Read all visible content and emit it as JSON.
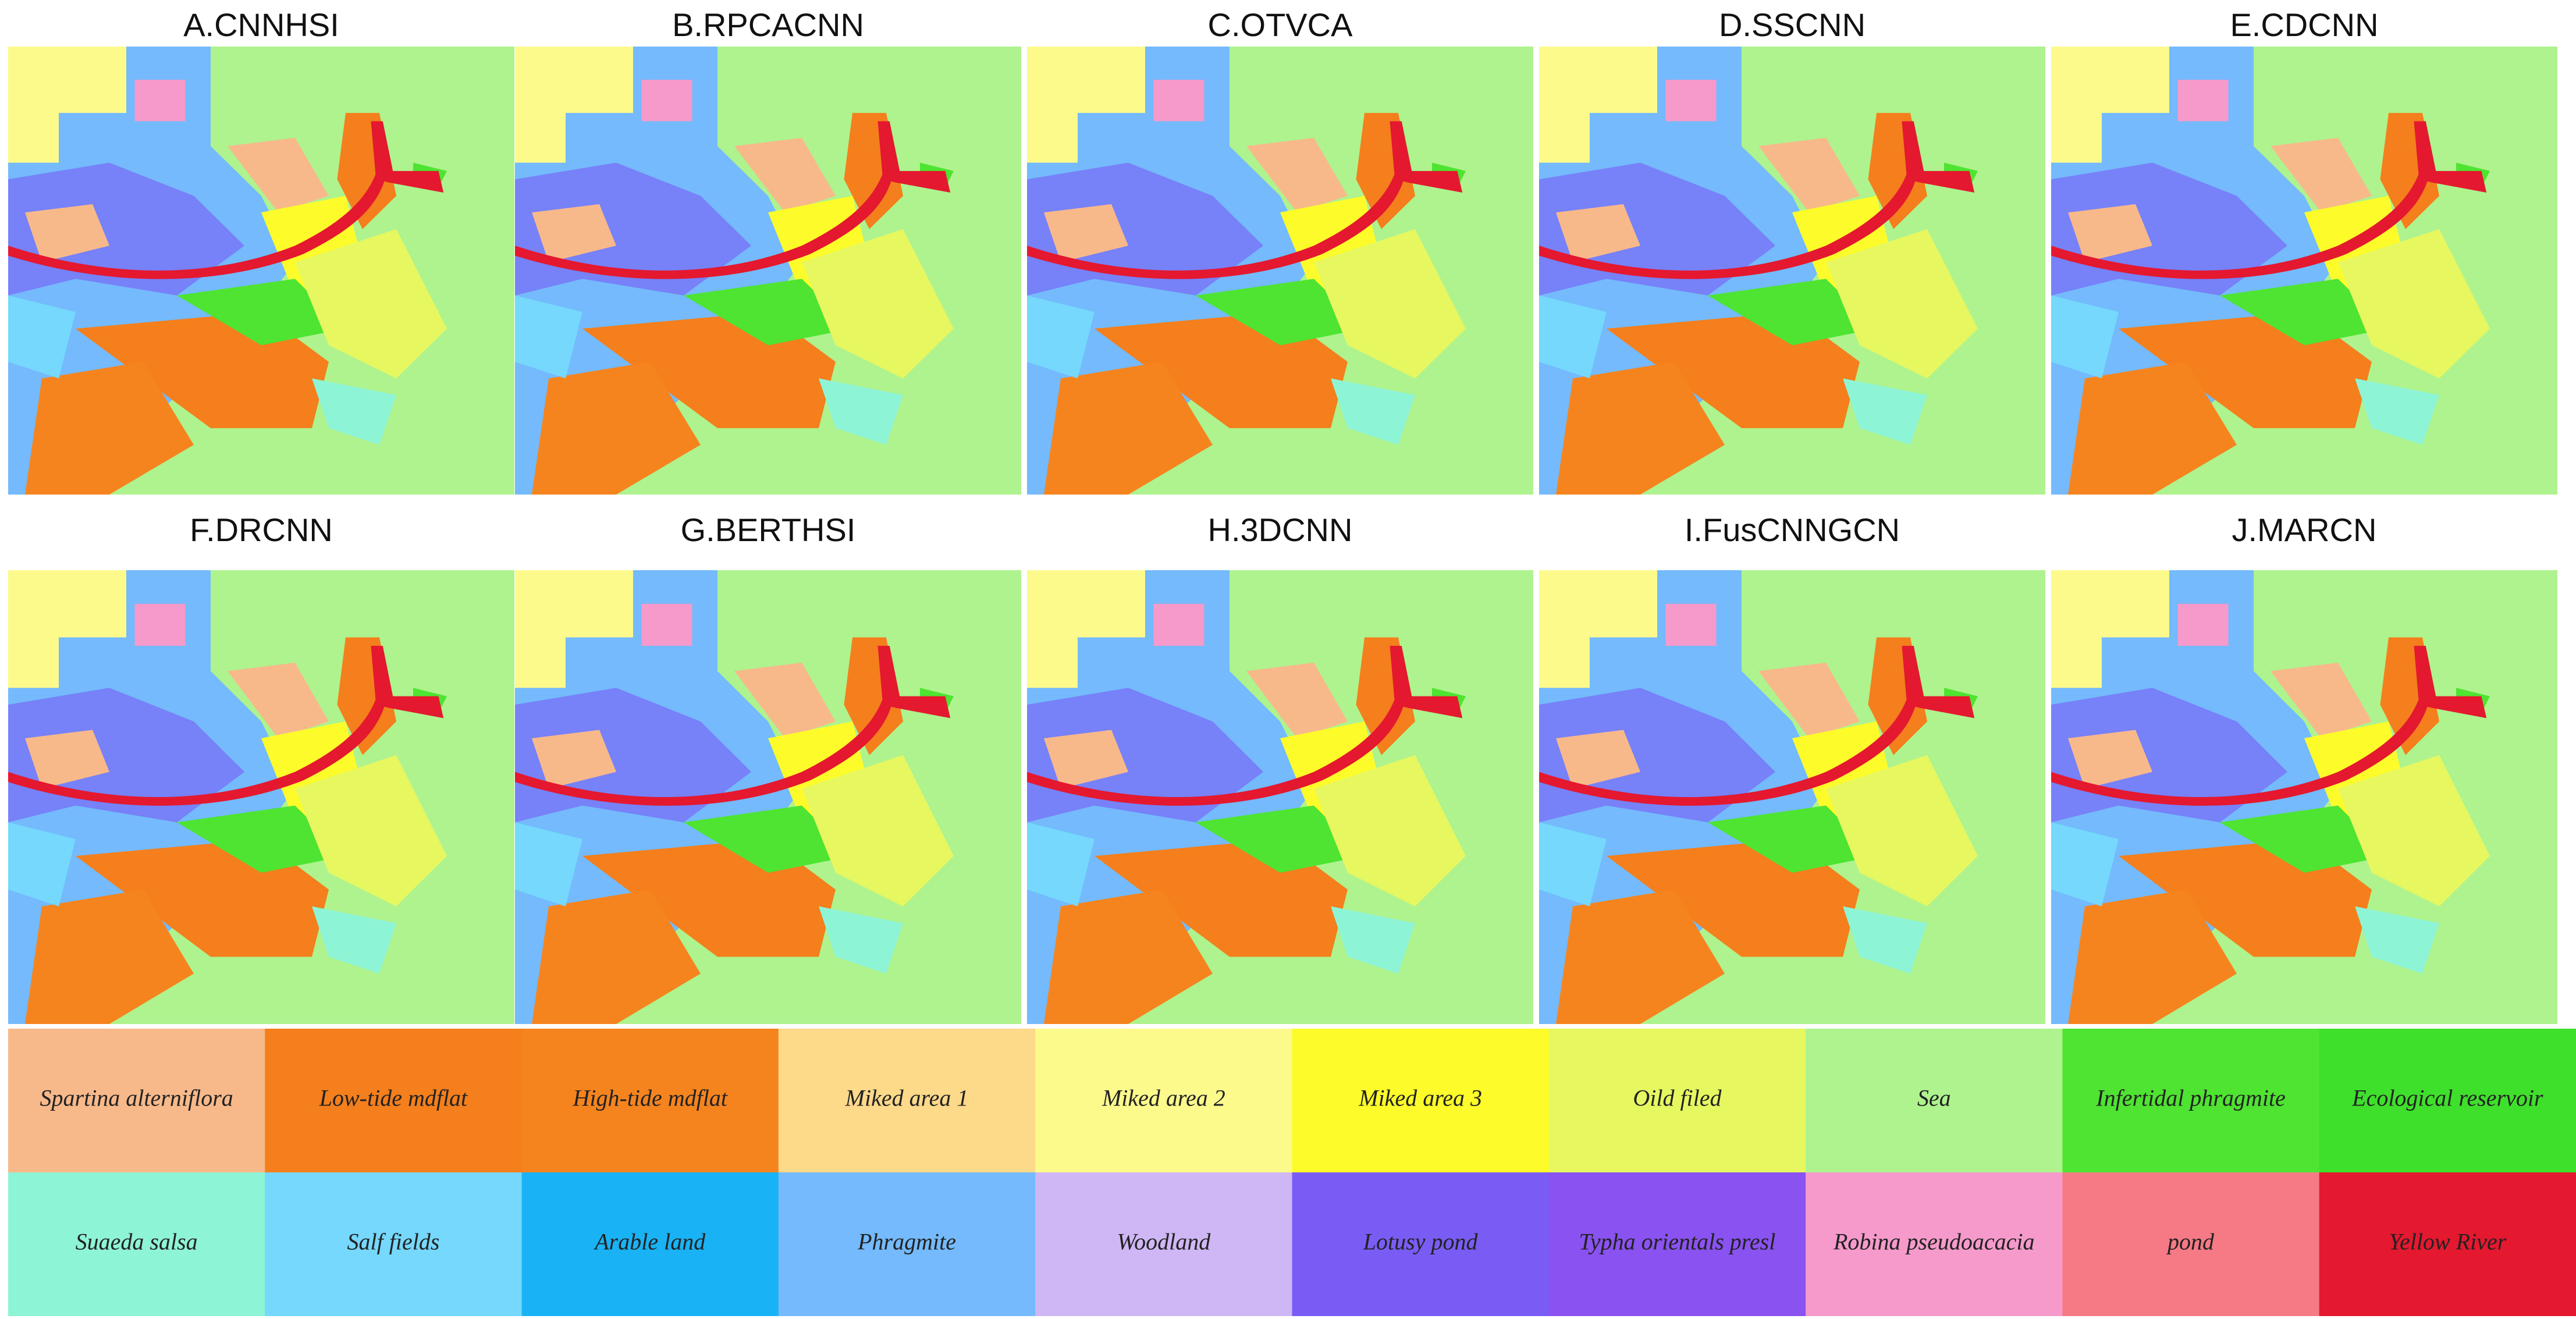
{
  "panels": [
    {
      "title": "A.CNNHSI"
    },
    {
      "title": "B.RPCACNN"
    },
    {
      "title": "C.OTVCA"
    },
    {
      "title": "D.SSCNN"
    },
    {
      "title": "E.CDCNN"
    },
    {
      "title": "F.DRCNN"
    },
    {
      "title": "G.BERTHSI"
    },
    {
      "title": "H.3DCNN"
    },
    {
      "title": "I.FusCNNGCN"
    },
    {
      "title": "J.MARCN"
    }
  ],
  "legend": [
    {
      "label": "Spartina alterniflora",
      "color": "#f8b98a"
    },
    {
      "label": "Low-tide mdflat",
      "color": "#f47f1c"
    },
    {
      "label": "High-tide mdflat",
      "color": "#f5841f"
    },
    {
      "label": "Miked area 1",
      "color": "#fdd98a"
    },
    {
      "label": "Miked area 2",
      "color": "#fdfa8c"
    },
    {
      "label": "Miked area 3",
      "color": "#fdfc2a"
    },
    {
      "label": "Oild filed",
      "color": "#e6f760"
    },
    {
      "label": "Sea",
      "color": "#aef38e"
    },
    {
      "label": "Infertidal phragmite",
      "color": "#4ee431"
    },
    {
      "label": "Ecological reservoir",
      "color": "#3fe02c"
    },
    {
      "label": "Suaeda salsa",
      "color": "#8ef4d6"
    },
    {
      "label": "Salf fields",
      "color": "#75d8fc"
    },
    {
      "label": "Arable land",
      "color": "#19b3f5"
    },
    {
      "label": "Phragmite",
      "color": "#74bafc"
    },
    {
      "label": "Woodland",
      "color": "#cfb7f5"
    },
    {
      "label": "Lotusy pond",
      "color": "#7a5cf5"
    },
    {
      "label": "Typha orientals presl",
      "color": "#8a52f0"
    },
    {
      "label": "Robina pseudoacacia",
      "color": "#f59acb"
    },
    {
      "label": "pond",
      "color": "#f57a85"
    },
    {
      "label": "Yellow River",
      "color": "#e4182f"
    }
  ]
}
